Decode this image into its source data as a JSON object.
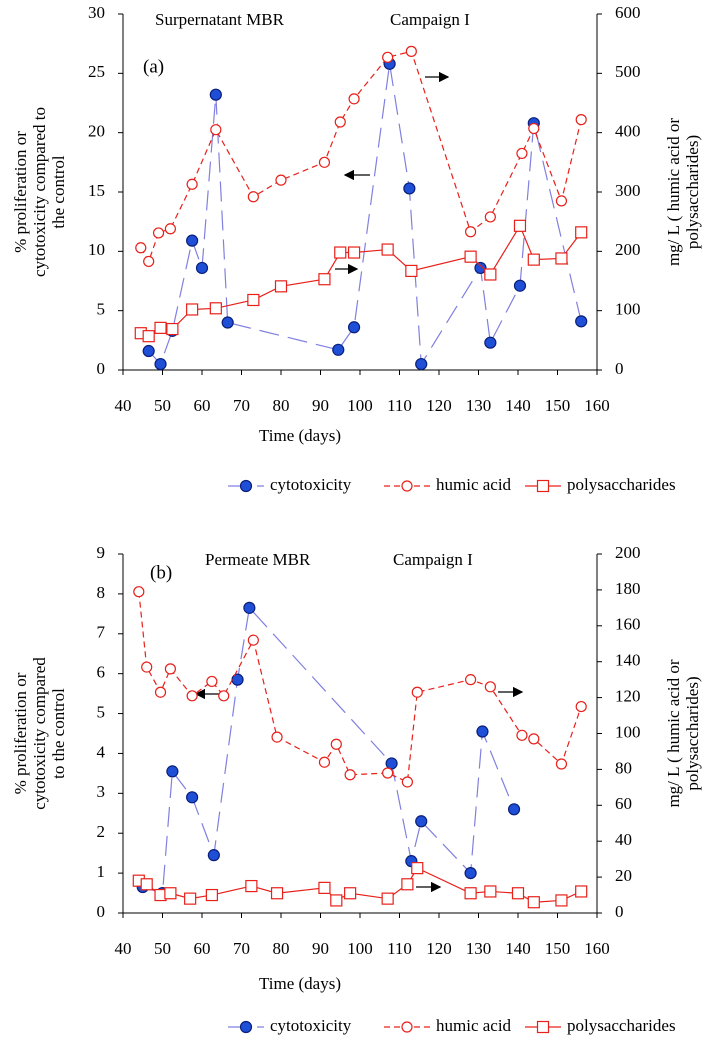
{
  "chart_data": [
    {
      "type": "line",
      "panel_label": "(a)",
      "title": "Surpernatant MBR",
      "subtitle": "Campaign I",
      "xlabel": "Time (days)",
      "ylabel": [
        "% proliferation or",
        "cytotoxicity compared to",
        "the control"
      ],
      "y2label": [
        "mg/ L ( humic  acid or",
        "polysaccharides)"
      ],
      "xlim": [
        40,
        160
      ],
      "xticks": [
        40,
        50,
        60,
        70,
        80,
        90,
        100,
        110,
        120,
        130,
        140,
        150,
        160
      ],
      "ylim": [
        0,
        30
      ],
      "yticks": [
        0,
        5,
        10,
        15,
        20,
        25,
        30
      ],
      "y2lim": [
        0,
        600
      ],
      "y2ticks": [
        0,
        100,
        200,
        300,
        400,
        500,
        600
      ],
      "series": [
        {
          "name": "cytotoxicity",
          "color": "#8080e0",
          "marker_color": "#1f4fd6",
          "marker": "circle-filled",
          "linestyle": "dashed-long",
          "x": [
            46.5,
            49.5,
            52.5,
            57.5,
            60,
            63.5,
            66.5,
            94.5,
            98.5,
            107.5,
            112.5,
            115.5,
            130.5,
            133,
            140.5,
            144,
            156
          ],
          "values": [
            1.6,
            0.5,
            3.3,
            10.9,
            8.6,
            23.2,
            4.0,
            1.7,
            3.6,
            25.8,
            15.3,
            0.5,
            8.6,
            2.3,
            7.1,
            20.8,
            4.1
          ]
        },
        {
          "name": "humic acid",
          "color": "#e8201a",
          "marker_color": "#e8201a",
          "marker": "circle-open",
          "linestyle": "dashed",
          "axis": "y2",
          "x": [
            44.5,
            46.5,
            49,
            52,
            57.5,
            63.5,
            73,
            80,
            91,
            95,
            98.5,
            107,
            113,
            128,
            133,
            141,
            144,
            151,
            156
          ],
          "values": [
            206,
            183,
            231,
            238,
            313,
            405,
            292,
            320,
            350,
            418,
            457,
            527,
            537,
            233,
            258,
            365,
            407,
            285,
            422
          ]
        },
        {
          "name": "polysaccharides",
          "color": "#e8201a",
          "marker_color": "#e8201a",
          "marker": "square-open",
          "linestyle": "solid",
          "axis": "y2",
          "x": [
            44.5,
            46.5,
            49.5,
            52.5,
            57.5,
            63.5,
            73,
            80,
            91,
            95,
            98.5,
            107,
            113,
            128,
            133,
            140.5,
            144,
            151,
            156
          ],
          "values": [
            62,
            57,
            71,
            69,
            102,
            104,
            118,
            141,
            153,
            198,
            198,
            203,
            167,
            191,
            161,
            243,
            186,
            188,
            232
          ]
        }
      ]
    },
    {
      "type": "line",
      "panel_label": "(b)",
      "title": "Permeate MBR",
      "subtitle": "Campaign I",
      "xlabel": "Time (days)",
      "ylabel": [
        "% proliferation or",
        "cytotoxicity compared",
        "to the control"
      ],
      "y2label": [
        "mg/ L ( humic  acid or",
        "polysaccharides)"
      ],
      "xlim": [
        40,
        160
      ],
      "xticks": [
        40,
        50,
        60,
        70,
        80,
        90,
        100,
        110,
        120,
        130,
        140,
        150,
        160
      ],
      "ylim": [
        0,
        9
      ],
      "yticks": [
        0,
        1,
        2,
        3,
        4,
        5,
        6,
        7,
        8,
        9
      ],
      "y2lim": [
        0,
        200
      ],
      "y2ticks": [
        0,
        20,
        40,
        60,
        80,
        100,
        120,
        140,
        160,
        180,
        200
      ],
      "series": [
        {
          "name": "cytotoxicity",
          "color": "#8080e0",
          "marker_color": "#1f4fd6",
          "marker": "circle-filled",
          "linestyle": "dashed-long",
          "x": [
            45,
            50,
            52.5,
            57.5,
            63,
            69,
            72,
            108,
            113,
            115.5,
            128,
            131,
            139
          ],
          "values": [
            0.65,
            0.5,
            3.55,
            2.9,
            1.45,
            5.85,
            7.65,
            3.75,
            1.3,
            2.3,
            1.0,
            4.55,
            2.6
          ]
        },
        {
          "name": "humic acid",
          "color": "#e8201a",
          "marker_color": "#e8201a",
          "marker": "circle-open",
          "linestyle": "dashed",
          "axis": "y2",
          "x": [
            44,
            46,
            49.5,
            52,
            57.5,
            62.5,
            65.5,
            73,
            79,
            91,
            94,
            97.5,
            107,
            112,
            114.5,
            128,
            133,
            141,
            144,
            151,
            156
          ],
          "values": [
            179,
            137,
            123,
            136,
            121,
            129,
            121,
            152,
            98,
            84,
            94,
            77,
            78,
            73,
            123,
            130,
            126,
            99,
            97,
            83,
            115
          ]
        },
        {
          "name": "polysaccharides",
          "color": "#e8201a",
          "marker_color": "#e8201a",
          "marker": "square-open",
          "linestyle": "solid",
          "axis": "y2",
          "x": [
            44,
            46,
            49.5,
            52,
            57,
            62.5,
            72.5,
            79,
            91,
            94,
            97.5,
            107,
            112,
            114.5,
            128,
            133,
            140,
            144,
            151,
            156
          ],
          "values": [
            18,
            16,
            10,
            11,
            8,
            10,
            15,
            11,
            14,
            7,
            11,
            8,
            16,
            25,
            11,
            12,
            11,
            6,
            7,
            12
          ]
        }
      ]
    }
  ]
}
